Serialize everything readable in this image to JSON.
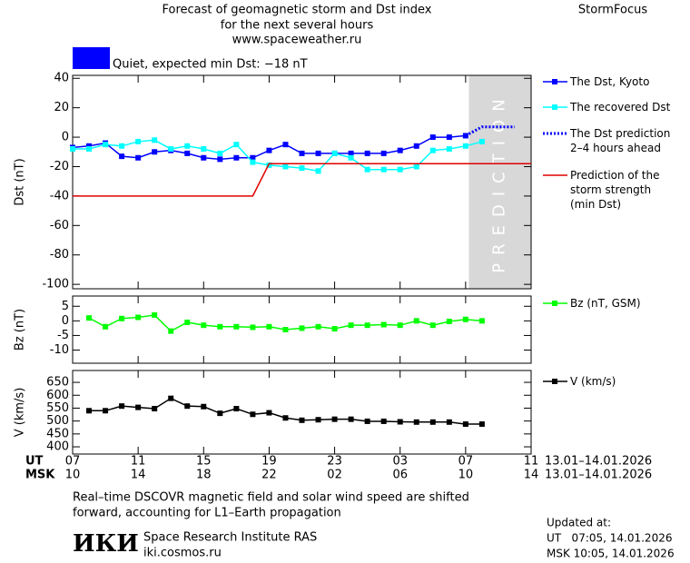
{
  "header": {
    "title_lines": [
      "Forecast of geomagnetic storm and Dst index",
      "for the next several hours",
      "www.spaceweather.ru"
    ],
    "brand": "StormFocus",
    "status": "Quiet, expected min Dst: −18 nT",
    "status_color": "#0000ff"
  },
  "chart_data": [
    {
      "type": "line",
      "y_label": "Dst (nT)",
      "xlim": [
        0,
        28
      ],
      "ylim": [
        -103,
        42
      ],
      "yticks": [
        40,
        20,
        0,
        -20,
        -40,
        -60,
        -80,
        -100
      ],
      "shade": {
        "from": 24.2,
        "to": 28,
        "label": "PREDICTION"
      },
      "series": [
        {
          "name": "The Dst, Kyoto",
          "color": "#0000ff",
          "marker": "square",
          "style": "solid",
          "x": [
            0,
            1,
            2,
            3,
            4,
            5,
            6,
            7,
            8,
            9,
            10,
            11,
            12,
            13,
            14,
            15,
            16,
            17,
            18,
            19,
            20,
            21,
            22,
            23,
            24
          ],
          "values": [
            -7,
            -6,
            -4,
            -13,
            -14,
            -10,
            -9,
            -11,
            -14,
            -15,
            -14,
            -14,
            -9,
            -5,
            -11,
            -11,
            -11,
            -11,
            -11,
            -11,
            -9,
            -6,
            0,
            0,
            1
          ]
        },
        {
          "name": "The recovered Dst",
          "color": "#00ffff",
          "marker": "square",
          "style": "solid",
          "x": [
            0,
            1,
            2,
            3,
            4,
            5,
            6,
            7,
            8,
            9,
            10,
            11,
            12,
            13,
            14,
            15,
            16,
            17,
            18,
            19,
            20,
            21,
            22,
            23,
            24,
            25
          ],
          "values": [
            -8,
            -8,
            -5,
            -6,
            -3,
            -2,
            -8,
            -6,
            -8,
            -11,
            -5,
            -17,
            -19,
            -20,
            -21,
            -23,
            -11,
            -14,
            -22,
            -22,
            -22,
            -20,
            -9,
            -8,
            -6,
            -3
          ]
        },
        {
          "name": "The Dst prediction\n2–4 hours ahead",
          "color": "#0000ff",
          "marker": "none",
          "style": "dotted",
          "x": [
            24,
            25,
            27
          ],
          "values": [
            1,
            7,
            7
          ]
        },
        {
          "name": "Prediction of the\nstorm strength\n(min Dst)",
          "color": "#e00000",
          "marker": "none",
          "style": "solid",
          "x": [
            0,
            11,
            12,
            28
          ],
          "values": [
            -40,
            -40,
            -18,
            -18
          ]
        }
      ]
    },
    {
      "type": "line",
      "y_label": "Bz (nT)",
      "xlim": [
        0,
        28
      ],
      "ylim": [
        -14.5,
        8.5
      ],
      "yticks": [
        5,
        0,
        -5,
        -10
      ],
      "series": [
        {
          "name": "Bz (nT, GSM)",
          "color": "#00ff00",
          "marker": "square",
          "style": "solid",
          "x": [
            1,
            2,
            3,
            4,
            5,
            6,
            7,
            8,
            9,
            10,
            11,
            12,
            13,
            14,
            15,
            16,
            17,
            18,
            19,
            20,
            21,
            22,
            23,
            24,
            25
          ],
          "values": [
            1,
            -2,
            0.8,
            1.2,
            2,
            -3.5,
            -0.5,
            -1.5,
            -2,
            -2,
            -2.2,
            -2,
            -3,
            -2.5,
            -2,
            -2.7,
            -1.5,
            -1.5,
            -1.3,
            -1.5,
            0,
            -1.5,
            -0.2,
            0.5,
            0
          ]
        }
      ]
    },
    {
      "type": "line",
      "y_label": "V (km/s)",
      "xlim": [
        0,
        28
      ],
      "ylim": [
        372,
        696
      ],
      "yticks": [
        650,
        600,
        550,
        500,
        450,
        400
      ],
      "series": [
        {
          "name": "V (km/s)",
          "color": "#000000",
          "marker": "square",
          "style": "solid",
          "x": [
            1,
            2,
            3,
            4,
            5,
            6,
            7,
            8,
            9,
            10,
            11,
            12,
            13,
            14,
            15,
            16,
            17,
            18,
            19,
            20,
            21,
            22,
            23,
            24,
            25
          ],
          "values": [
            540,
            540,
            558,
            553,
            548,
            588,
            558,
            556,
            530,
            548,
            526,
            532,
            512,
            503,
            505,
            507,
            507,
            499,
            499,
            497,
            496,
            496,
            496,
            488,
            488
          ]
        }
      ]
    }
  ],
  "x_axis": {
    "ut_label": "UT",
    "msk_label": "MSK",
    "xticks": [
      {
        "value": 0,
        "label": "07"
      },
      {
        "value": 4,
        "label": "11"
      },
      {
        "value": 8,
        "label": "15"
      },
      {
        "value": 12,
        "label": "19"
      },
      {
        "value": 16,
        "label": "23"
      },
      {
        "value": 20,
        "label": "03"
      },
      {
        "value": 24,
        "label": "07"
      },
      {
        "value": 28,
        "label": "11"
      }
    ],
    "msk_labels": [
      "10",
      "14",
      "18",
      "22",
      "02",
      "06",
      "10",
      "14"
    ],
    "range_ut": "13.01–14.01.2026",
    "range_msk": "13.01–14.01.2026"
  },
  "footer": {
    "note_lines": [
      "Real–time DSCOVR magnetic field and solar wind speed are shifted",
      "forward, accounting for L1–Earth propagation"
    ],
    "logo": "ИКИ",
    "institute": "Space Research Institute RAS",
    "url": "iki.cosmos.ru",
    "updated_title": "Updated at:",
    "updated_ut": "UT   07:05, 14.01.2026",
    "updated_msk": "MSK 10:05, 14.01.2026"
  }
}
